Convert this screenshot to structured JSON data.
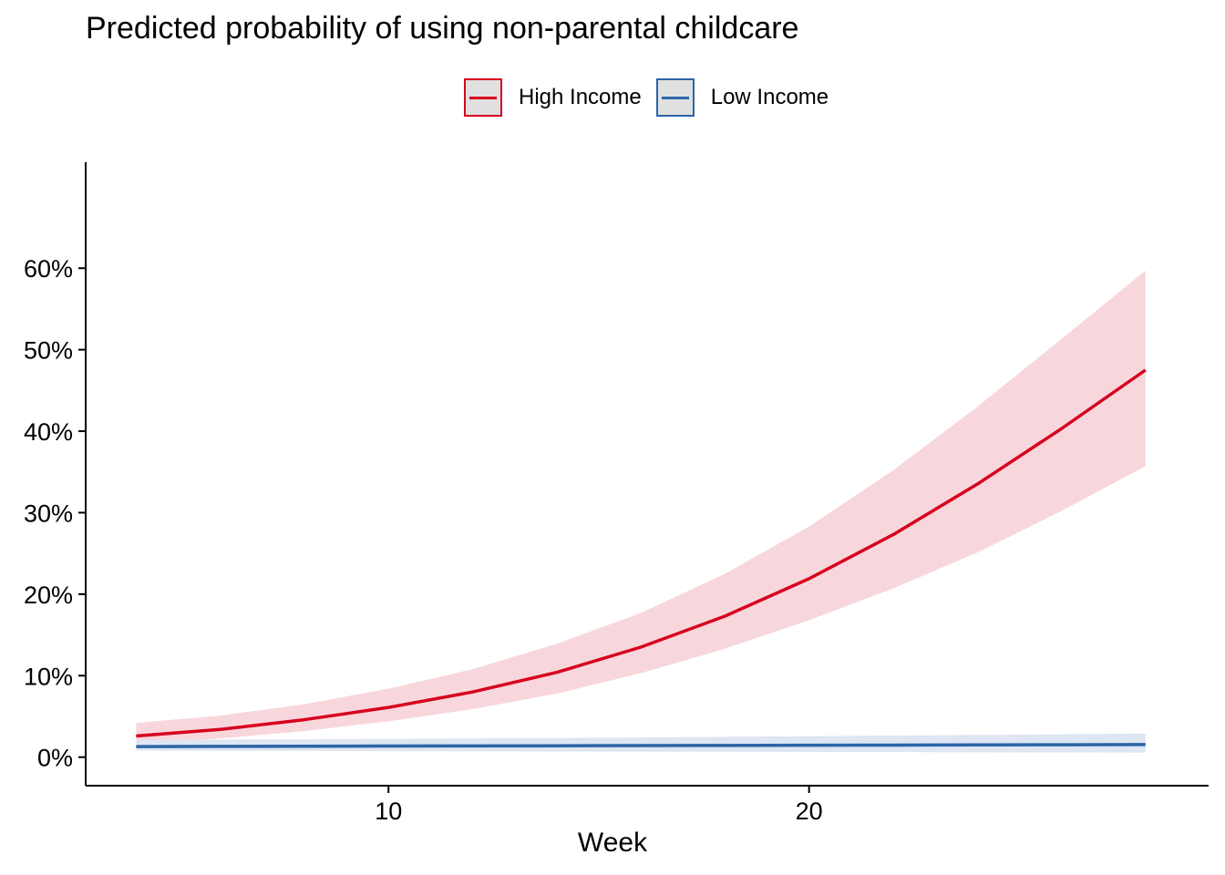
{
  "chart_data": {
    "type": "line",
    "title": "Predicted probability of using non-parental childcare",
    "xlabel": "Week",
    "ylabel": "",
    "xlim": [
      2.8,
      29.5
    ],
    "ylim": [
      -3.5,
      73
    ],
    "x_ticks": [
      10,
      20
    ],
    "x_tick_labels": [
      "10",
      "20"
    ],
    "y_ticks": [
      0,
      10,
      20,
      30,
      40,
      50,
      60
    ],
    "y_tick_labels": [
      "0%",
      "10%",
      "20%",
      "30%",
      "40%",
      "50%",
      "60%"
    ],
    "grid": false,
    "legend_position": "top",
    "x": [
      4,
      6,
      8,
      10,
      12,
      14,
      16,
      18,
      20,
      22,
      24,
      26,
      28
    ],
    "series": [
      {
        "name": "High Income",
        "color": "#d7001e",
        "fill": "#f8d7dc",
        "values": [
          2.6,
          3.4,
          4.6,
          6.1,
          8.0,
          10.4,
          13.5,
          17.3,
          21.9,
          27.3,
          33.5,
          40.3,
          47.5
        ],
        "lower": [
          1.6,
          2.3,
          3.2,
          4.4,
          5.9,
          7.8,
          10.3,
          13.3,
          16.8,
          20.7,
          25.1,
          30.2,
          35.7
        ],
        "upper": [
          4.2,
          5.1,
          6.5,
          8.4,
          10.8,
          13.9,
          17.7,
          22.5,
          28.3,
          35.2,
          43.0,
          51.3,
          59.7
        ]
      },
      {
        "name": "Low Income",
        "color": "#2b65a8",
        "fill": "#dde6f2",
        "values": [
          1.3,
          1.32,
          1.34,
          1.36,
          1.38,
          1.4,
          1.42,
          1.44,
          1.46,
          1.48,
          1.5,
          1.52,
          1.55
        ],
        "lower": [
          0.8,
          0.78,
          0.76,
          0.74,
          0.72,
          0.7,
          0.68,
          0.66,
          0.64,
          0.62,
          0.6,
          0.58,
          0.55
        ],
        "upper": [
          2.1,
          2.15,
          2.2,
          2.25,
          2.3,
          2.35,
          2.42,
          2.5,
          2.58,
          2.65,
          2.72,
          2.8,
          2.9
        ]
      }
    ]
  }
}
